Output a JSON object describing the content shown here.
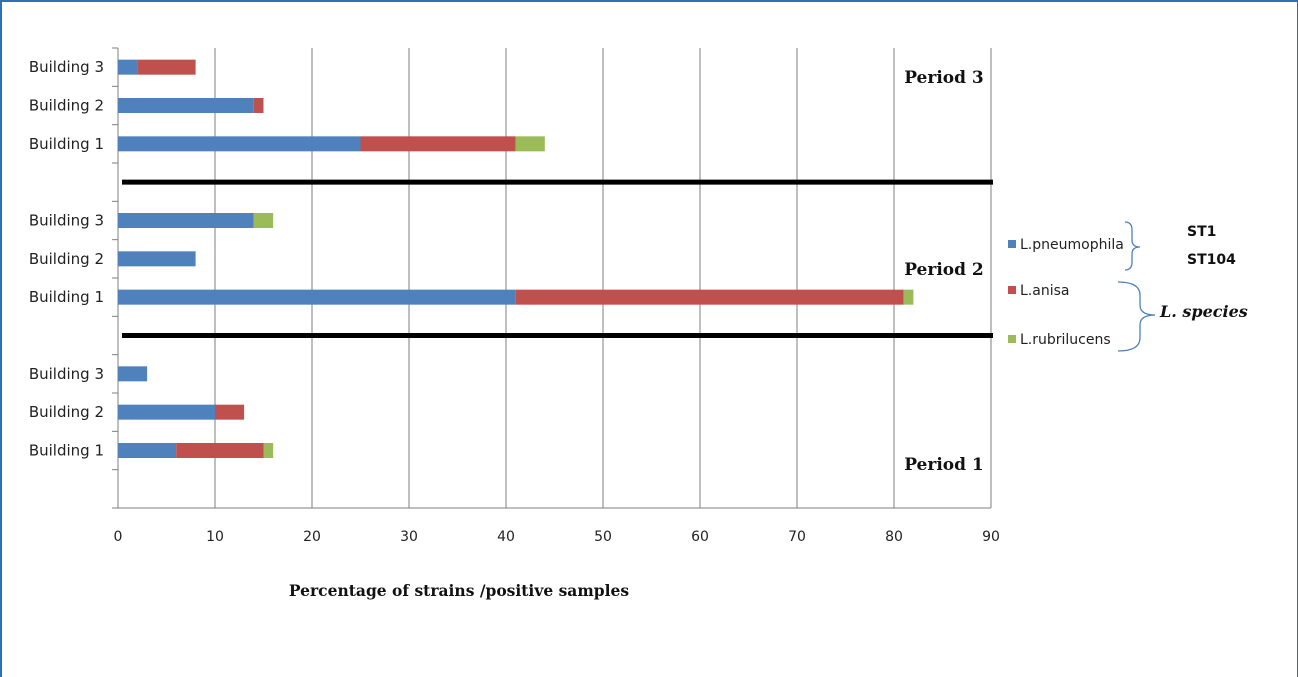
{
  "chart_data": {
    "type": "bar",
    "orientation": "horizontal",
    "stacked": true,
    "xlabel": "Percentage of strains /positive samples",
    "xlim": [
      0,
      90
    ],
    "xticks": [
      "0",
      "10",
      "20",
      "30",
      "40",
      "50",
      "60",
      "70",
      "80",
      "90"
    ],
    "grid": true,
    "series": [
      {
        "name": "L.pneumophila",
        "color": "#4f81bd"
      },
      {
        "name": "L.anisa",
        "color": "#c0504d"
      },
      {
        "name": "L.rubrilucens",
        "color": "#9bbb59"
      }
    ],
    "groups": [
      {
        "label": "Period 3",
        "rows": [
          {
            "category": "Building 3",
            "values": [
              2,
              6,
              0
            ]
          },
          {
            "category": "Building 2",
            "values": [
              14,
              1,
              0
            ]
          },
          {
            "category": "Building 1",
            "values": [
              25,
              16,
              3
            ]
          }
        ]
      },
      {
        "label": "Period 2",
        "rows": [
          {
            "category": "Building 3",
            "values": [
              14,
              0,
              2
            ]
          },
          {
            "category": "Building 2",
            "values": [
              8,
              0,
              0
            ]
          },
          {
            "category": "Building 1",
            "values": [
              41,
              40,
              1
            ]
          }
        ]
      },
      {
        "label": "Period 1",
        "rows": [
          {
            "category": "Building 3",
            "values": [
              3,
              0,
              0
            ]
          },
          {
            "category": "Building 2",
            "values": [
              10,
              3,
              0
            ]
          },
          {
            "category": "Building 1",
            "values": [
              6,
              9,
              1
            ]
          }
        ]
      }
    ],
    "legend": {
      "position": "right",
      "items": [
        "L.pneumophila",
        "L.anisa",
        "L.rubrilucens"
      ],
      "annotations": {
        "st1": "ST1",
        "st104": "ST104",
        "species": "L. species"
      }
    }
  }
}
